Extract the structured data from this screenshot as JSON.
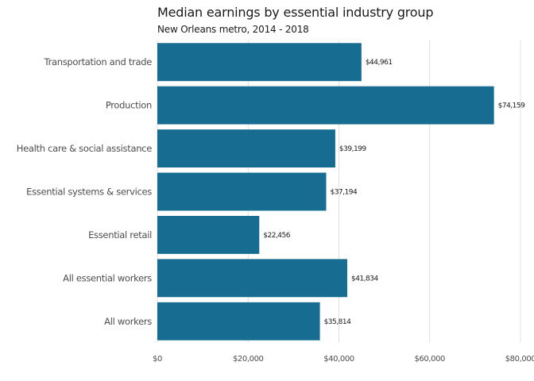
{
  "chart_data": {
    "type": "bar",
    "orientation": "horizontal",
    "title": "Median earnings by essential industry group",
    "subtitle": "New Orleans metro, 2014 - 2018",
    "xlabel": "",
    "ylabel": "",
    "categories": [
      "Transportation and trade",
      "Production",
      "Health care & social assistance",
      "Essential systems & services",
      "Essential retail",
      "All essential workers",
      "All workers"
    ],
    "values": [
      44961,
      74159,
      39199,
      37194,
      22456,
      41834,
      35814
    ],
    "data_labels": [
      "$44,961",
      "$74,159",
      "$39,199",
      "$37,194",
      "$22,456",
      "$41,834",
      "$35,814"
    ],
    "xlim": [
      0,
      80000
    ],
    "x_ticks": [
      0,
      20000,
      40000,
      60000,
      80000
    ],
    "x_tick_labels": [
      "$0",
      "$20,000",
      "$40,000",
      "$60,000",
      "$80,000"
    ],
    "grid": "vertical",
    "legend": "none",
    "bar_color": "#166d91",
    "grid_color": "#e0e0e0"
  }
}
